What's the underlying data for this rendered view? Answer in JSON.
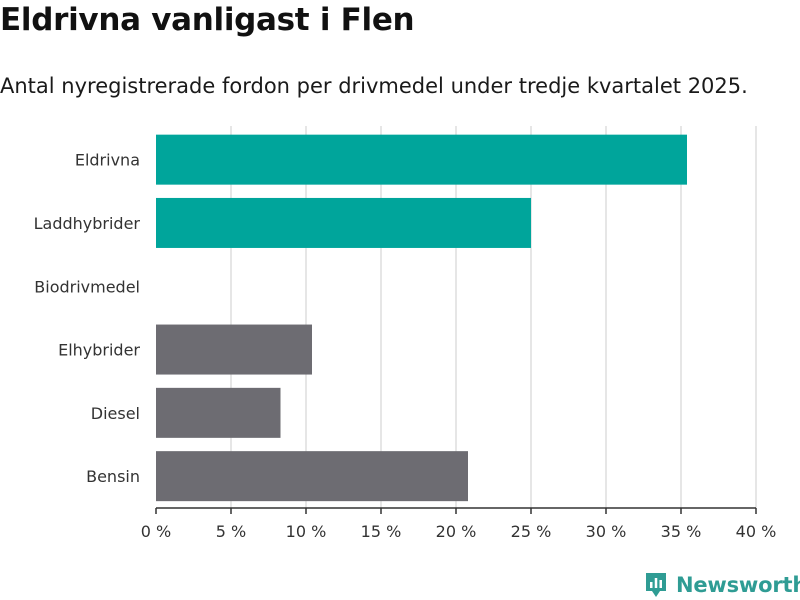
{
  "header": {
    "title": "Eldrivna vanligast i Flen",
    "subtitle": "Antal nyregistrerade fordon per drivmedel under tredje kvartalet 2025."
  },
  "brand": {
    "name": "Newsworthy",
    "logo_icon": "bar-chart-icon",
    "color": "#2f9c94"
  },
  "colors": {
    "highlight": "#00a59b",
    "default": "#6d6c72",
    "grid": "#dddddd",
    "axis": "#333333"
  },
  "chart_data": {
    "type": "bar",
    "orientation": "horizontal",
    "categories": [
      "Eldrivna",
      "Laddhybrider",
      "Biodrivmedel",
      "Elhybrider",
      "Diesel",
      "Bensin"
    ],
    "values": [
      35.4,
      25.0,
      0,
      10.4,
      8.3,
      20.8
    ],
    "highlight": [
      true,
      true,
      false,
      false,
      false,
      false
    ],
    "xlim": [
      0,
      40
    ],
    "xticks": [
      0,
      5,
      10,
      15,
      20,
      25,
      30,
      35,
      40
    ],
    "tick_labels": [
      "0 %",
      "5 %",
      "10 %",
      "15 %",
      "20 %",
      "25 %",
      "30 %",
      "35 %",
      "40 %"
    ],
    "grid": true
  }
}
